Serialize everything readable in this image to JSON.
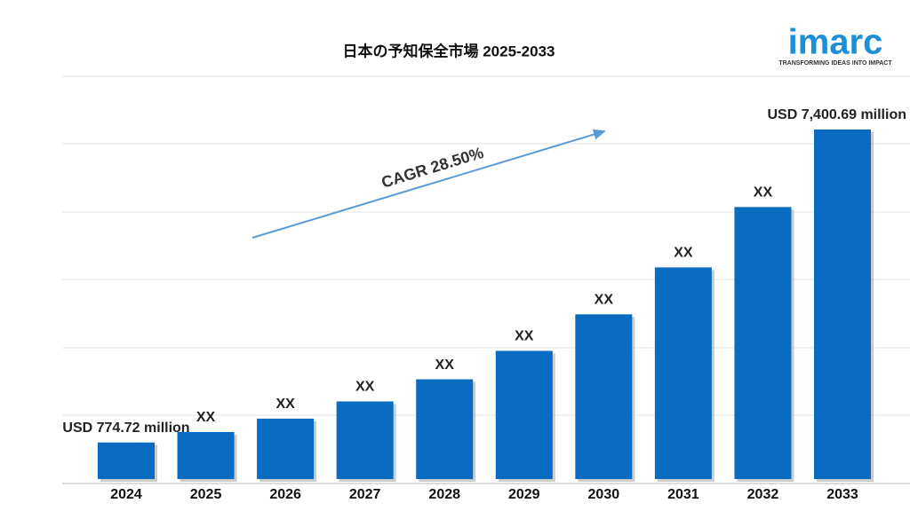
{
  "chart_data": {
    "type": "bar",
    "title": "日本の予知保全市場  2025-2033",
    "categories": [
      "2024",
      "2025",
      "2026",
      "2027",
      "2028",
      "2029",
      "2030",
      "2031",
      "2032",
      "2033"
    ],
    "values": [
      774.72,
      995.5,
      1279.2,
      1643.8,
      2112.3,
      2714.3,
      3487.9,
      4482.0,
      5759.4,
      7400.69
    ],
    "value_labels": [
      "USD 774.72 million",
      "XX",
      "XX",
      "XX",
      "XX",
      "XX",
      "XX",
      "XX",
      "XX",
      "USD 7,400.69 million"
    ],
    "color": "#0a6cc0",
    "annotation": "CAGR 28.50%",
    "logo": {
      "name": "imarc",
      "tagline": "TRANSFORMING IDEAS INTO IMPACT"
    }
  }
}
